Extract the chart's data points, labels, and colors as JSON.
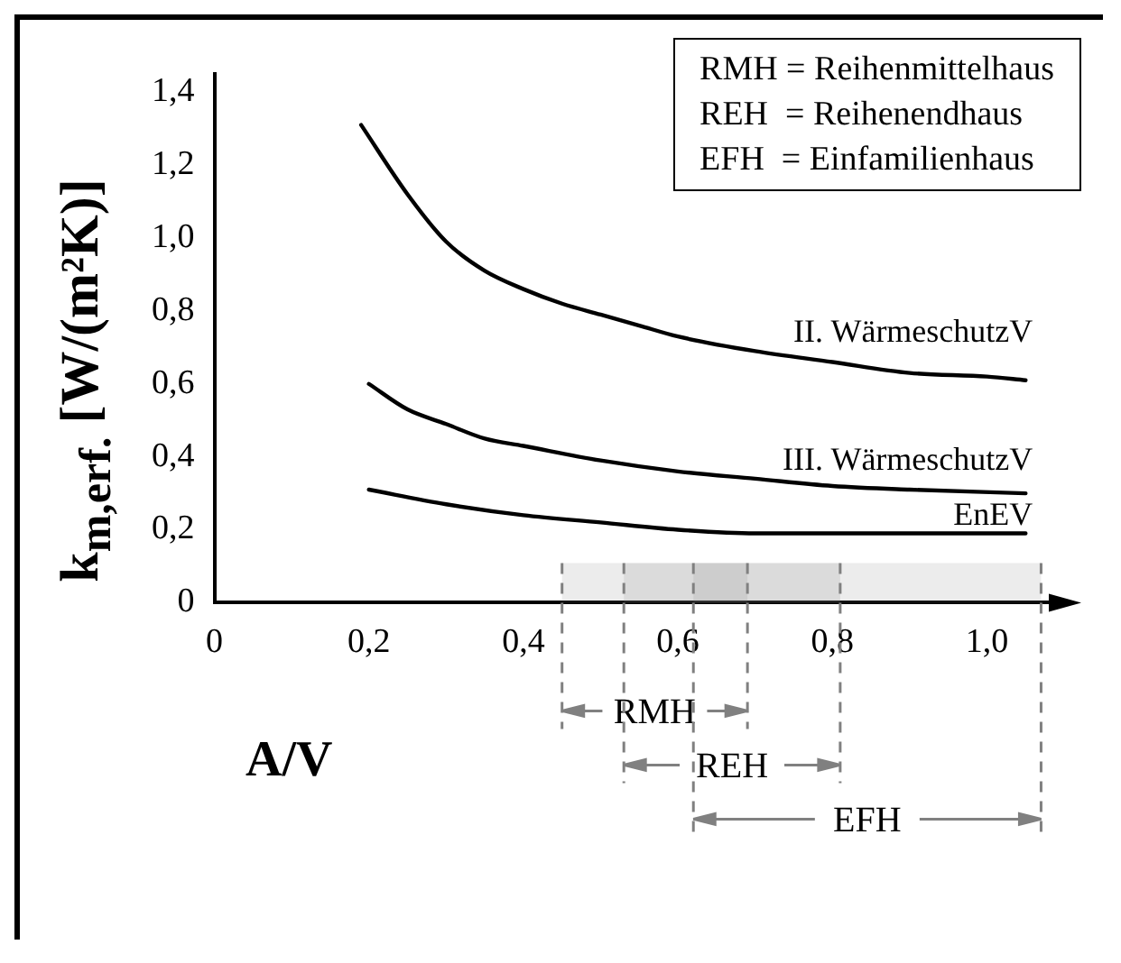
{
  "chart_data": {
    "type": "line",
    "xlabel": "A/V",
    "ylabel": "k$_{m,erf.}$ [W/(m²K)]",
    "annotations": [
      "RMH = Reihenmittelhaus",
      "REH  = Reihenendhaus",
      "EFH  = Einfamilienhaus"
    ],
    "xlim": [
      0,
      1.08
    ],
    "ylim": [
      0,
      1.45
    ],
    "xticks": [
      {
        "value": 0,
        "label": "0"
      },
      {
        "value": 0.2,
        "label": "0,2"
      },
      {
        "value": 0.4,
        "label": "0,4"
      },
      {
        "value": 0.6,
        "label": "0,6"
      },
      {
        "value": 0.8,
        "label": "0,8"
      },
      {
        "value": 1.0,
        "label": "1,0"
      }
    ],
    "yticks": [
      0,
      {
        "value": 0.2,
        "label": "0,2"
      },
      {
        "value": 0.4,
        "label": "0,4"
      },
      {
        "value": 0.6,
        "label": "0,6"
      },
      {
        "value": 0.8,
        "label": "0,8"
      },
      {
        "value": 1.0,
        "label": "1,0"
      },
      {
        "value": 1.2,
        "label": "1,2"
      },
      {
        "value": 1.4,
        "label": "1,4"
      }
    ],
    "grid": false,
    "legend": "bottom",
    "marker": "none",
    "line_style": "solid",
    "series": [
      {
        "name": "II. WärmeschutzV",
        "color": "#000000",
        "x": [
          0.19,
          0.25,
          0.3,
          0.35,
          0.4,
          0.45,
          0.5,
          0.55,
          0.6,
          0.7,
          0.8,
          0.9,
          1.0,
          1.05
        ],
        "values": [
          1.31,
          1.12,
          0.99,
          0.91,
          0.86,
          0.82,
          0.79,
          0.76,
          0.73,
          0.69,
          0.66,
          0.63,
          0.62,
          0.61
        ]
      },
      {
        "name": "III. WärmeschutzV",
        "color": "#000000",
        "x": [
          0.2,
          0.25,
          0.3,
          0.35,
          0.4,
          0.5,
          0.6,
          0.7,
          0.8,
          0.9,
          1.05
        ],
        "values": [
          0.6,
          0.53,
          0.49,
          0.45,
          0.43,
          0.39,
          0.36,
          0.34,
          0.32,
          0.31,
          0.3
        ]
      },
      {
        "name": "EnEV",
        "color": "#000000",
        "x": [
          0.2,
          0.3,
          0.4,
          0.5,
          0.6,
          0.7,
          0.8,
          0.9,
          1.05
        ],
        "values": [
          0.31,
          0.27,
          0.24,
          0.22,
          0.2,
          0.19,
          0.19,
          0.19,
          0.19
        ]
      }
    ],
    "bands": [
      {
        "axis": "x",
        "from": 0.45,
        "to": 0.69,
        "label": "RMH",
        "color": "#808080"
      },
      {
        "axis": "x",
        "from": 0.53,
        "to": 0.81,
        "label": "REH",
        "color": "#808080"
      },
      {
        "axis": "x",
        "from": 0.62,
        "to": 1.07,
        "label": "EFH",
        "color": "#808080"
      }
    ]
  }
}
